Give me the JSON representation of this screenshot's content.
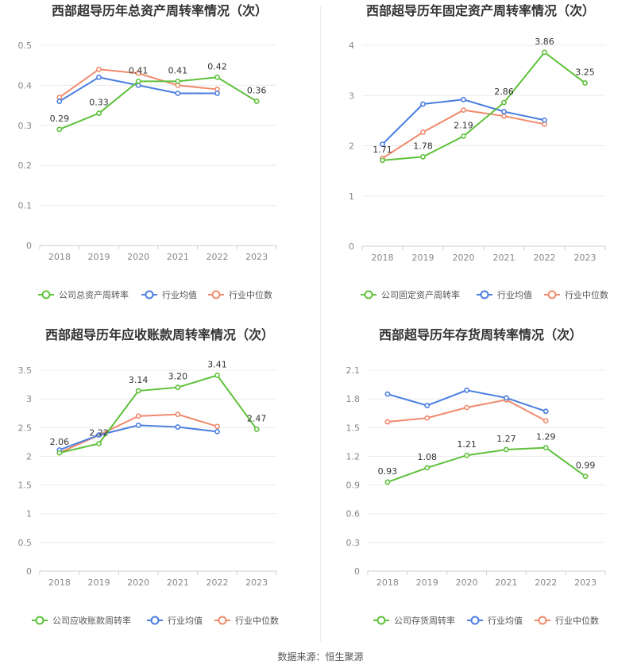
{
  "source_text": "数据来源：恒生聚源",
  "legend_colors": {
    "company": "#5ec13a",
    "avg": "#4a7ee0",
    "median": "#f08a6d"
  },
  "chart_data": [
    {
      "type": "line",
      "title": "西部超导历年总资产周转率情况（次）",
      "x": [
        "2018",
        "2019",
        "2020",
        "2021",
        "2022",
        "2023"
      ],
      "ylim": [
        0,
        0.5
      ],
      "yticks": [
        "0",
        "0.1",
        "0.2",
        "0.3",
        "0.4",
        "0.5"
      ],
      "grid": true,
      "legend": "bottom",
      "series": [
        {
          "name": "公司总资产周转率",
          "values": [
            0.29,
            0.33,
            0.41,
            0.41,
            0.42,
            0.36
          ],
          "labels": [
            "0.29",
            "0.33",
            "0.41",
            "0.41",
            "0.42",
            "0.36"
          ]
        },
        {
          "name": "行业均值",
          "values": [
            0.36,
            0.42,
            0.4,
            0.38,
            0.38,
            null
          ]
        },
        {
          "name": "行业中位数",
          "values": [
            0.37,
            0.44,
            0.43,
            0.4,
            0.39,
            null
          ]
        }
      ]
    },
    {
      "type": "line",
      "title": "西部超导历年固定资产周转率情况（次）",
      "x": [
        "2018",
        "2019",
        "2020",
        "2021",
        "2022",
        "2023"
      ],
      "ylim": [
        0,
        4
      ],
      "yticks": [
        "0",
        "1",
        "2",
        "3",
        "4"
      ],
      "grid": true,
      "legend": "bottom",
      "series": [
        {
          "name": "公司固定资产周转率",
          "values": [
            1.71,
            1.78,
            2.19,
            2.86,
            3.86,
            3.25
          ],
          "labels": [
            "1.71",
            "1.78",
            "2.19",
            "2.86",
            "3.86",
            "3.25"
          ]
        },
        {
          "name": "行业均值",
          "values": [
            2.03,
            2.83,
            2.92,
            2.68,
            2.51,
            null
          ]
        },
        {
          "name": "行业中位数",
          "values": [
            1.75,
            2.27,
            2.71,
            2.59,
            2.43,
            null
          ]
        }
      ]
    },
    {
      "type": "line",
      "title": "西部超导历年应收账款周转率情况（次）",
      "x": [
        "2018",
        "2019",
        "2020",
        "2021",
        "2022",
        "2023"
      ],
      "ylim": [
        0,
        3.5
      ],
      "yticks": [
        "0",
        "0.5",
        "1",
        "1.5",
        "2",
        "2.5",
        "3",
        "3.5"
      ],
      "grid": true,
      "legend": "bottom",
      "series": [
        {
          "name": "公司应收账款周转率",
          "values": [
            2.06,
            2.22,
            3.14,
            3.2,
            3.41,
            2.47
          ],
          "labels": [
            "2.06",
            "2.22",
            "3.14",
            "3.20",
            "3.41",
            "2.47"
          ]
        },
        {
          "name": "行业均值",
          "values": [
            2.11,
            2.37,
            2.54,
            2.51,
            2.43,
            null
          ]
        },
        {
          "name": "行业中位数",
          "values": [
            2.06,
            2.37,
            2.7,
            2.73,
            2.52,
            null
          ]
        }
      ]
    },
    {
      "type": "line",
      "title": "西部超导历年存货周转率情况（次）",
      "x": [
        "2018",
        "2019",
        "2020",
        "2021",
        "2022",
        "2023"
      ],
      "ylim": [
        0,
        2.1
      ],
      "yticks": [
        "0",
        "0.3",
        "0.6",
        "0.9",
        "1.2",
        "1.5",
        "1.8",
        "2.1"
      ],
      "grid": true,
      "legend": "bottom",
      "series": [
        {
          "name": "公司存货周转率",
          "values": [
            0.93,
            1.08,
            1.21,
            1.27,
            1.29,
            0.99
          ],
          "labels": [
            "0.93",
            "1.08",
            "1.21",
            "1.27",
            "1.29",
            "0.99"
          ]
        },
        {
          "name": "行业均值",
          "values": [
            1.85,
            1.73,
            1.89,
            1.81,
            1.67,
            null
          ]
        },
        {
          "name": "行业中位数",
          "values": [
            1.56,
            1.6,
            1.71,
            1.79,
            1.57,
            null
          ]
        }
      ]
    }
  ]
}
